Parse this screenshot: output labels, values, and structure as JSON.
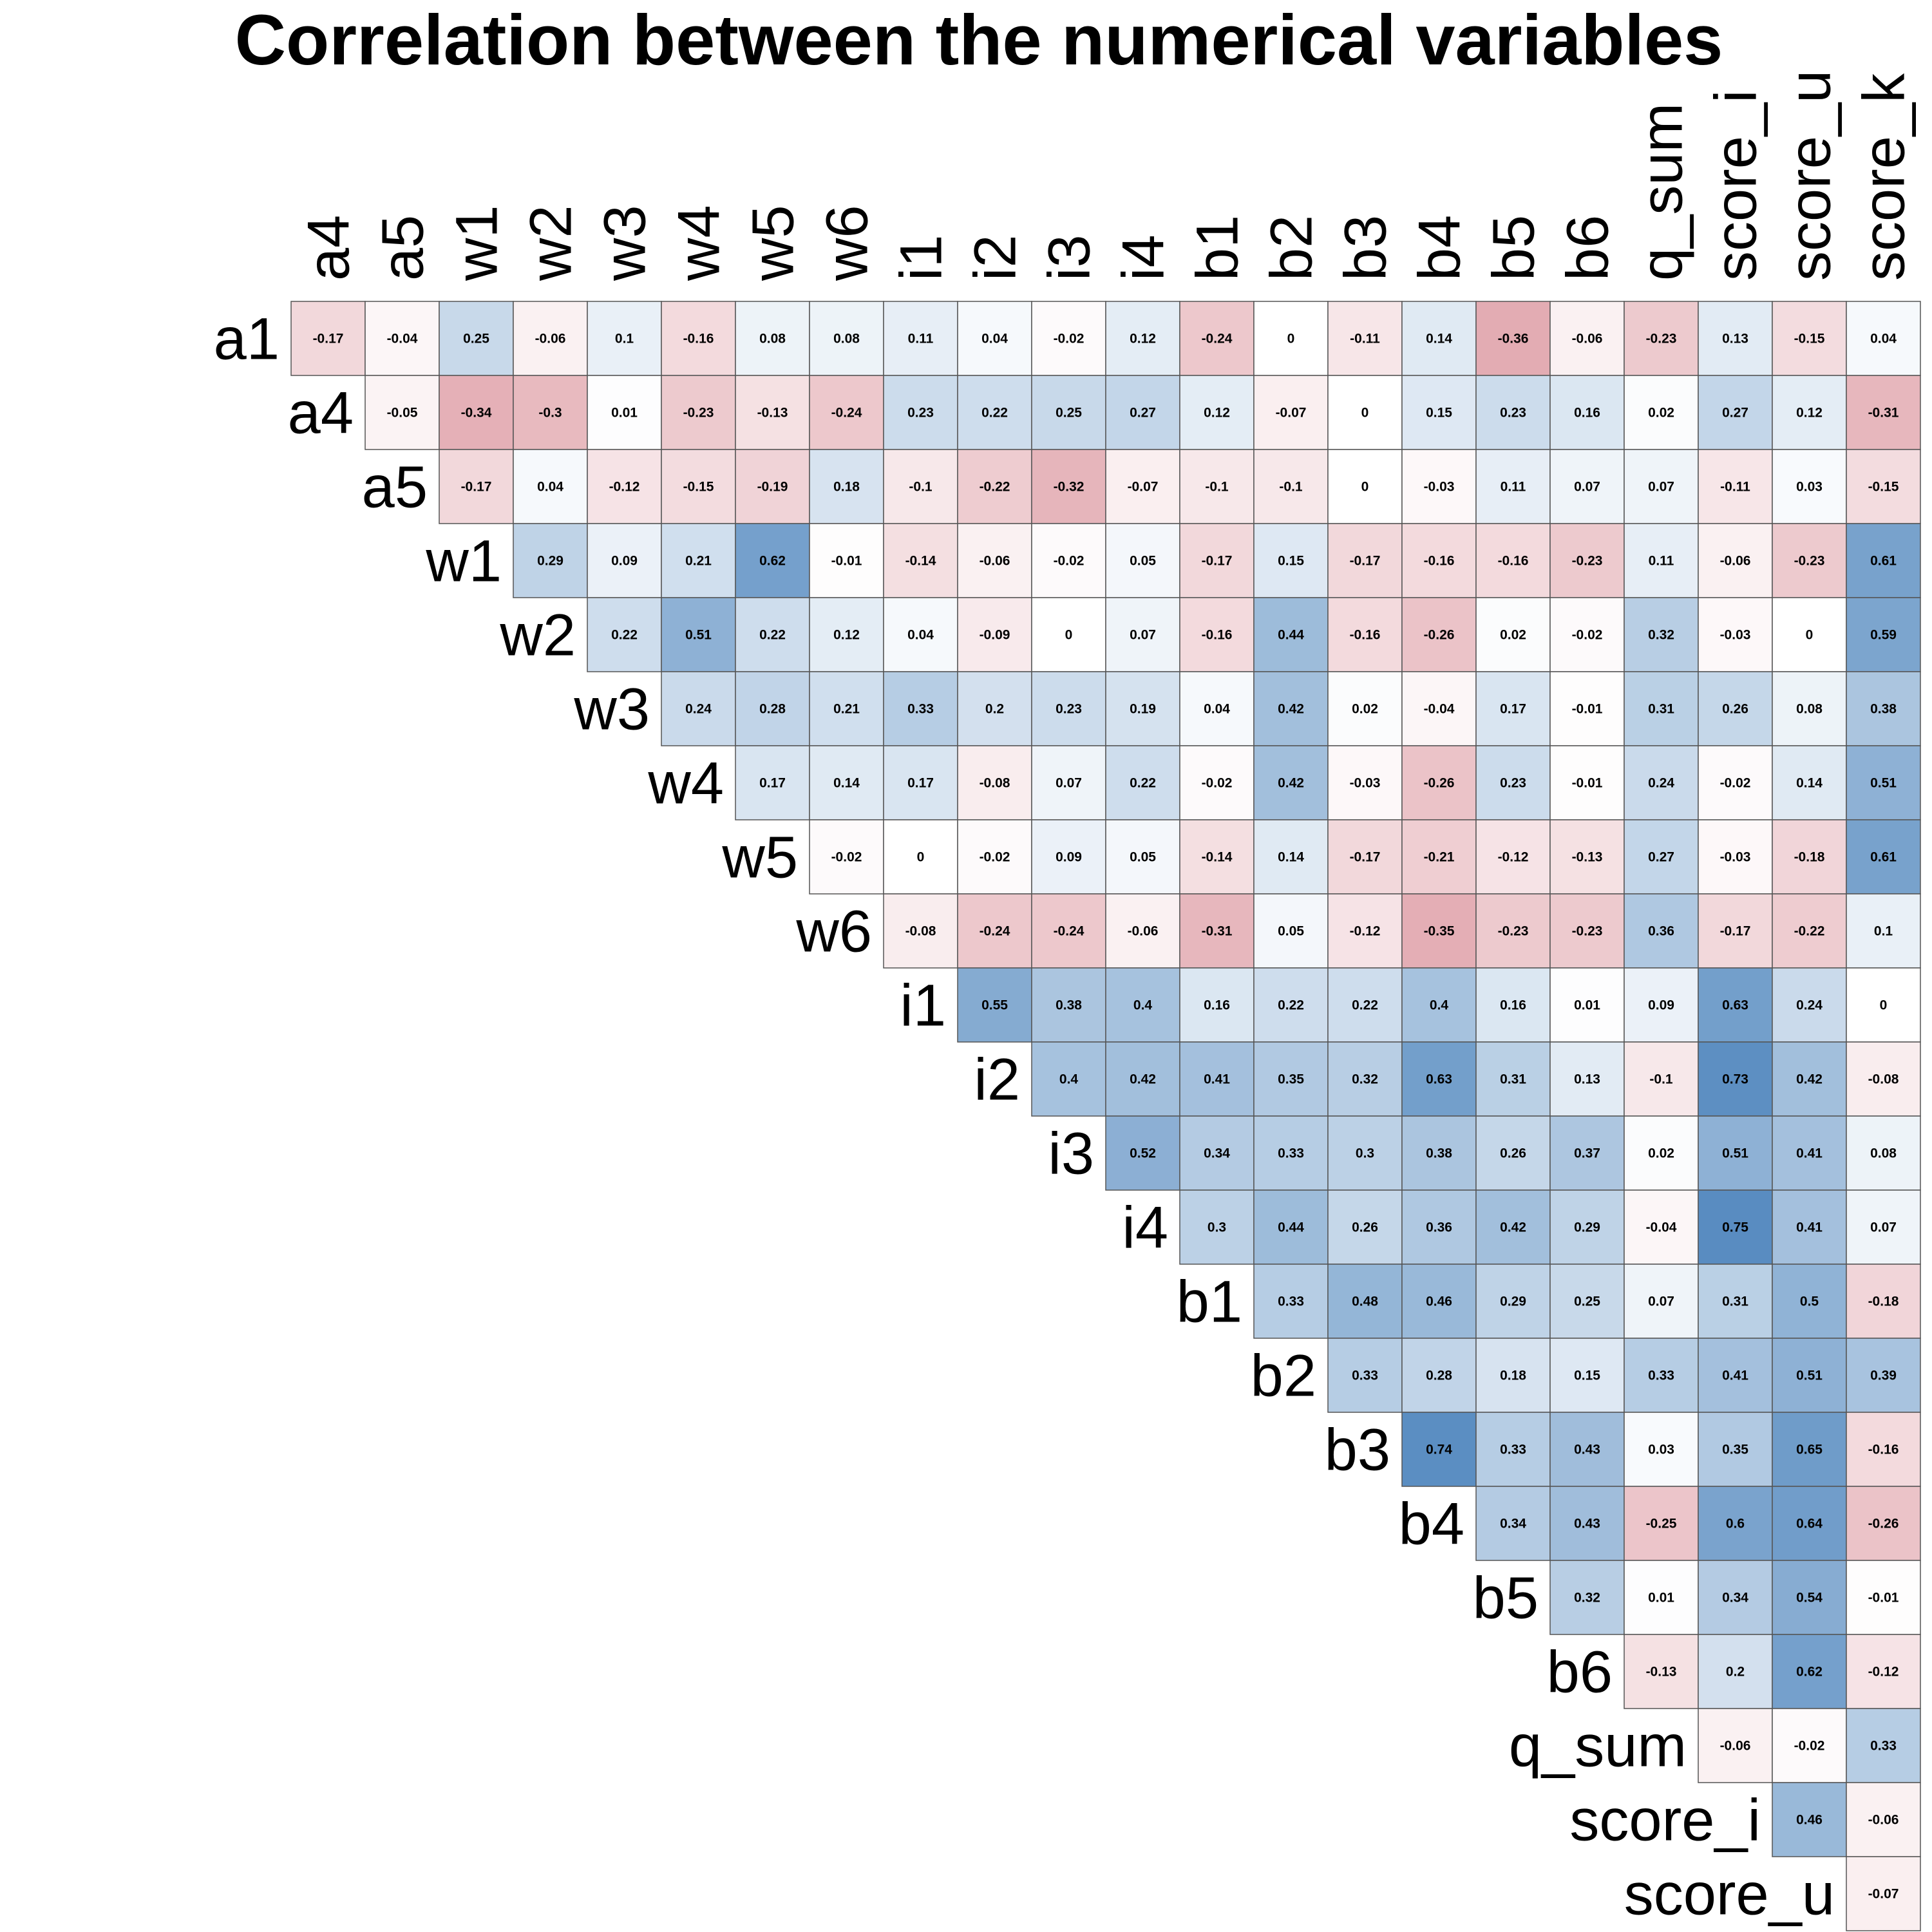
{
  "chart_data": {
    "type": "heatmap",
    "title": "Correlation between the numerical variables",
    "row_labels": [
      "a1",
      "a4",
      "a5",
      "w1",
      "w2",
      "w3",
      "w4",
      "w5",
      "w6",
      "i1",
      "i2",
      "i3",
      "i4",
      "b1",
      "b2",
      "b3",
      "b4",
      "b5",
      "b6",
      "q_sum",
      "score_i",
      "score_u"
    ],
    "col_labels": [
      "a4",
      "a5",
      "w1",
      "w2",
      "w3",
      "w4",
      "w5",
      "w6",
      "i1",
      "i2",
      "i3",
      "i4",
      "b1",
      "b2",
      "b3",
      "b4",
      "b5",
      "b6",
      "q_sum",
      "score_i",
      "score_u",
      "score_k"
    ],
    "values": [
      [
        -0.17,
        -0.04,
        0.25,
        -0.06,
        0.1,
        -0.16,
        0.08,
        0.08,
        0.11,
        0.04,
        -0.02,
        0.12,
        -0.24,
        0,
        -0.11,
        0.14,
        -0.36,
        -0.06,
        -0.23,
        0.13,
        -0.15,
        0.04
      ],
      [
        -0.05,
        -0.34,
        -0.3,
        0.01,
        -0.23,
        -0.13,
        -0.24,
        0.23,
        0.22,
        0.25,
        0.27,
        0.12,
        -0.07,
        0,
        0.15,
        0.23,
        0.16,
        0.02,
        0.27,
        0.12,
        -0.31
      ],
      [
        -0.17,
        0.04,
        -0.12,
        -0.15,
        -0.19,
        0.18,
        -0.1,
        -0.22,
        -0.32,
        -0.07,
        -0.1,
        -0.1,
        0,
        -0.03,
        0.11,
        0.07,
        0.07,
        -0.11,
        0.03,
        -0.15
      ],
      [
        0.29,
        0.09,
        0.21,
        0.62,
        -0.01,
        -0.14,
        -0.06,
        -0.02,
        0.05,
        -0.17,
        0.15,
        -0.17,
        -0.16,
        -0.16,
        -0.23,
        0.11,
        -0.06,
        -0.23,
        0.61
      ],
      [
        0.22,
        0.51,
        0.22,
        0.12,
        0.04,
        -0.09,
        0,
        0.07,
        -0.16,
        0.44,
        -0.16,
        -0.26,
        0.02,
        -0.02,
        0.32,
        -0.03,
        0,
        0.59
      ],
      [
        0.24,
        0.28,
        0.21,
        0.33,
        0.2,
        0.23,
        0.19,
        0.04,
        0.42,
        0.02,
        -0.04,
        0.17,
        -0.01,
        0.31,
        0.26,
        0.08,
        0.38
      ],
      [
        0.17,
        0.14,
        0.17,
        -0.08,
        0.07,
        0.22,
        -0.02,
        0.42,
        -0.03,
        -0.26,
        0.23,
        -0.01,
        0.24,
        -0.02,
        0.14,
        0.51
      ],
      [
        -0.02,
        0,
        -0.02,
        0.09,
        0.05,
        -0.14,
        0.14,
        -0.17,
        -0.21,
        -0.12,
        -0.13,
        0.27,
        -0.03,
        -0.18,
        0.61
      ],
      [
        -0.08,
        -0.24,
        -0.24,
        -0.06,
        -0.31,
        0.05,
        -0.12,
        -0.35,
        -0.23,
        -0.23,
        0.36,
        -0.17,
        -0.22,
        0.1
      ],
      [
        0.55,
        0.38,
        0.4,
        0.16,
        0.22,
        0.22,
        0.4,
        0.16,
        0.01,
        0.09,
        0.63,
        0.24,
        0
      ],
      [
        0.4,
        0.42,
        0.41,
        0.35,
        0.32,
        0.63,
        0.31,
        0.13,
        -0.1,
        0.73,
        0.42,
        -0.08
      ],
      [
        0.52,
        0.34,
        0.33,
        0.3,
        0.38,
        0.26,
        0.37,
        0.02,
        0.51,
        0.41,
        0.08
      ],
      [
        0.3,
        0.44,
        0.26,
        0.36,
        0.42,
        0.29,
        -0.04,
        0.75,
        0.41,
        0.07
      ],
      [
        0.33,
        0.48,
        0.46,
        0.29,
        0.25,
        0.07,
        0.31,
        0.5,
        -0.18
      ],
      [
        0.33,
        0.28,
        0.18,
        0.15,
        0.33,
        0.41,
        0.51,
        0.39
      ],
      [
        0.74,
        0.33,
        0.43,
        0.03,
        0.35,
        0.65,
        -0.16
      ],
      [
        0.34,
        0.43,
        -0.25,
        0.6,
        0.64,
        -0.26
      ],
      [
        0.32,
        0.01,
        0.34,
        0.54,
        -0.01
      ],
      [
        -0.13,
        0.2,
        0.62,
        -0.12
      ],
      [
        -0.06,
        -0.02,
        0.33
      ],
      [
        0.46,
        -0.06
      ],
      [
        -0.07
      ]
    ],
    "color_scale": {
      "negative": "#b2182b",
      "mid": "#ffffff",
      "positive": "#2166ac"
    },
    "value_range": [
      -1,
      1
    ]
  }
}
